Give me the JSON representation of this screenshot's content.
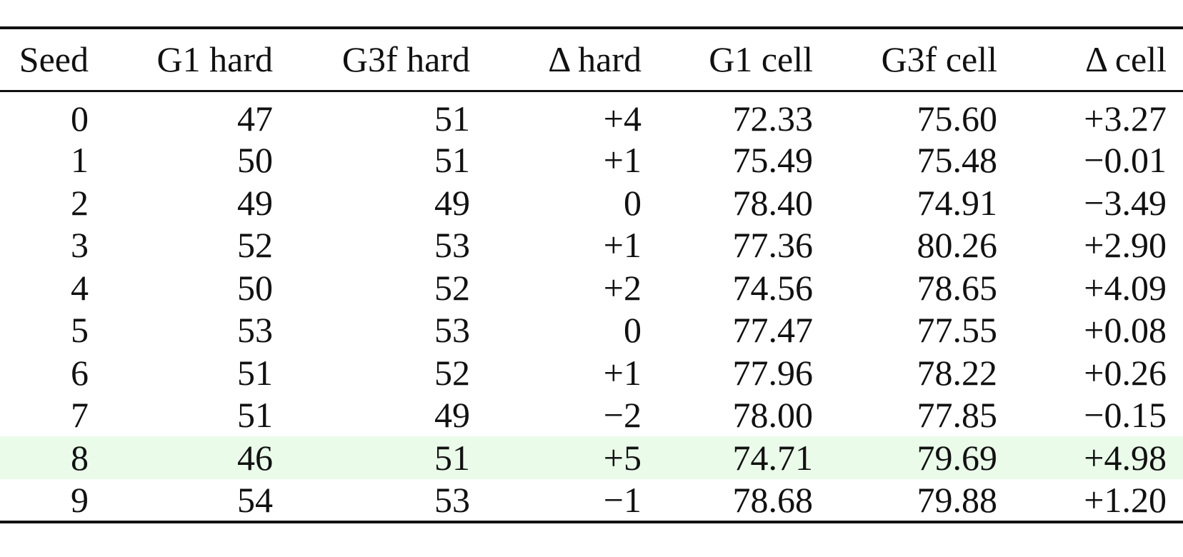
{
  "table": {
    "header": [
      "Seed",
      "G1 hard",
      "G3f hard",
      "Δ hard",
      "G1 cell",
      "G3f cell",
      "Δ cell"
    ],
    "rows": [
      [
        "0",
        "47",
        "51",
        "+4",
        "72.33",
        "75.60",
        "+3.27"
      ],
      [
        "1",
        "50",
        "51",
        "+1",
        "75.49",
        "75.48",
        "−0.01"
      ],
      [
        "2",
        "49",
        "49",
        "0",
        "78.40",
        "74.91",
        "−3.49"
      ],
      [
        "3",
        "52",
        "53",
        "+1",
        "77.36",
        "80.26",
        "+2.90"
      ],
      [
        "4",
        "50",
        "52",
        "+2",
        "74.56",
        "78.65",
        "+4.09"
      ],
      [
        "5",
        "53",
        "53",
        "0",
        "77.47",
        "77.55",
        "+0.08"
      ],
      [
        "6",
        "51",
        "52",
        "+1",
        "77.96",
        "78.22",
        "+0.26"
      ],
      [
        "7",
        "51",
        "49",
        "−2",
        "78.00",
        "77.85",
        "−0.15"
      ],
      [
        "8",
        "46",
        "51",
        "+5",
        "74.71",
        "79.69",
        "+4.98"
      ],
      [
        "9",
        "54",
        "53",
        "−1",
        "78.68",
        "79.88",
        "+1.20"
      ]
    ]
  }
}
